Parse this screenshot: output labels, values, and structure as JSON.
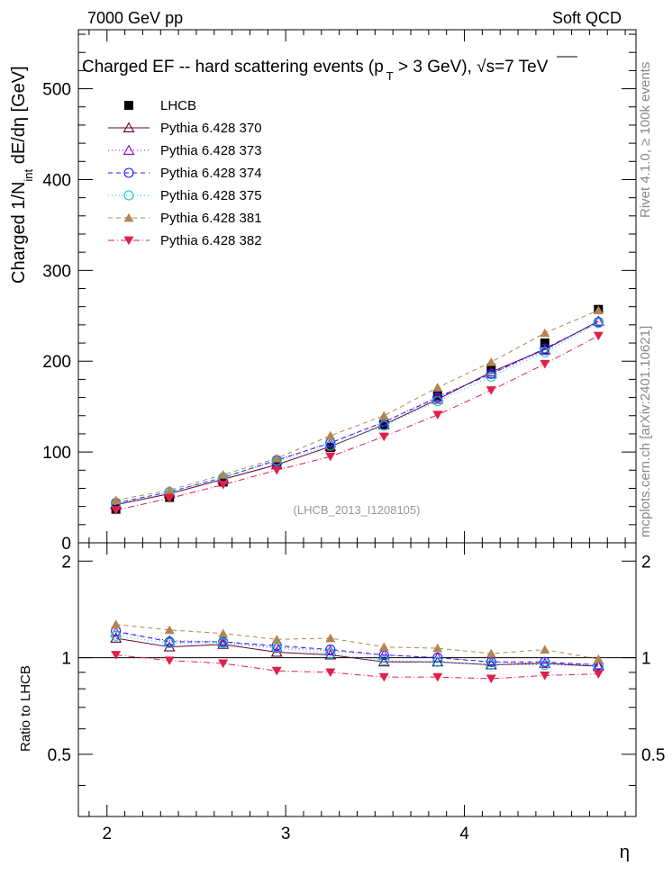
{
  "header": {
    "energy_label": "7000 GeV pp",
    "category": "Soft QCD"
  },
  "side_labels": {
    "rivet": "Rivet 4.1.0, ≥ 100k events",
    "mcplots": "mcplots.cern.ch [arXiv:2401.10621]"
  },
  "watermark": "(LHCB_2013_I1208105)",
  "chart_data": [
    {
      "type": "scatter",
      "panel": "main",
      "title": "Charged EF -- hard scattering events (p_T > 3 GeV),  √s=7 TeV",
      "title_part1": "Charged EF -- hard scattering events (p",
      "title_sub": "T",
      "title_part2": " > 3 GeV),  ",
      "title_sqrt": "√",
      "title_part3": "s=7 TeV",
      "xlabel": "η",
      "ylabel": "Charged 1/N_int dE/dη [GeV]",
      "ylabel_part1": "Charged 1/N",
      "ylabel_sub": "int",
      "ylabel_part2": "   dE/dη [GeV]",
      "xlim": [
        1.84,
        4.96
      ],
      "ylim": [
        0,
        565
      ],
      "yticks": [
        0,
        100,
        200,
        300,
        400,
        500
      ],
      "ytick_labels": [
        "0",
        "100",
        "200",
        "300",
        "400",
        "500"
      ],
      "x": [
        2.05,
        2.35,
        2.65,
        2.95,
        3.25,
        3.55,
        3.85,
        4.15,
        4.45,
        4.75
      ],
      "series": [
        {
          "name": "LHCB",
          "color": "#000000",
          "marker": "square",
          "line": "none",
          "values": [
            37,
            50,
            67,
            88,
            105,
            130,
            162,
            192,
            220,
            257
          ]
        },
        {
          "name": "Pythia 6.428 370",
          "color": "#660033",
          "marker": "triangle-open",
          "line": "solid",
          "values": [
            42,
            54,
            70,
            86,
            106,
            130,
            158,
            188,
            213,
            244
          ]
        },
        {
          "name": "Pythia 6.428 373",
          "color": "#9900cc",
          "marker": "triangle-open",
          "line": "dotted",
          "values": [
            43,
            56,
            72,
            91,
            110,
            133,
            161,
            186,
            212,
            244
          ]
        },
        {
          "name": "Pythia 6.428 374",
          "color": "#1a1aff",
          "marker": "circle-open",
          "line": "dashed",
          "values": [
            44,
            56,
            72,
            91,
            110,
            133,
            160,
            186,
            214,
            243
          ]
        },
        {
          "name": "Pythia 6.428 375",
          "color": "#00cccc",
          "marker": "circle-open",
          "line": "dotted",
          "values": [
            43,
            56,
            72,
            90,
            107,
            129,
            156,
            183,
            210,
            242
          ]
        },
        {
          "name": "Pythia 6.428 381",
          "color": "#b08650",
          "marker": "triangle-up",
          "line": "dashed",
          "values": [
            47,
            58,
            75,
            93,
            118,
            140,
            171,
            199,
            231,
            256
          ]
        },
        {
          "name": "Pythia 6.428 382",
          "color": "#e0204a",
          "marker": "triangle-down",
          "line": "dashdot",
          "values": [
            36,
            49,
            64,
            80,
            95,
            117,
            141,
            168,
            197,
            228
          ]
        }
      ]
    },
    {
      "type": "line",
      "panel": "ratio",
      "ylabel": "Ratio to LHCB",
      "xlabel": "η",
      "xlim": [
        1.84,
        4.96
      ],
      "ylim": [
        0.32,
        2.28
      ],
      "xticks": [
        2,
        3,
        4
      ],
      "xtick_labels": [
        "2",
        "3",
        "4"
      ],
      "yticks": [
        0.5,
        1,
        2
      ],
      "ytick_labels": [
        "0.5",
        "1",
        "2"
      ],
      "x": [
        2.05,
        2.35,
        2.65,
        2.95,
        3.25,
        3.55,
        3.85,
        4.15,
        4.45,
        4.75
      ],
      "series": [
        {
          "name": "Pythia 6.428 370",
          "values": [
            1.15,
            1.08,
            1.1,
            1.04,
            1.02,
            0.97,
            0.97,
            0.95,
            0.96,
            0.94
          ]
        },
        {
          "name": "Pythia 6.428 373",
          "values": [
            1.2,
            1.13,
            1.12,
            1.08,
            1.05,
            1.02,
            1.0,
            0.97,
            0.96,
            0.95
          ]
        },
        {
          "name": "Pythia 6.428 374",
          "values": [
            1.21,
            1.12,
            1.12,
            1.09,
            1.06,
            1.02,
            1.0,
            0.97,
            0.97,
            0.95
          ]
        },
        {
          "name": "Pythia 6.428 375",
          "values": [
            1.17,
            1.11,
            1.11,
            1.07,
            1.03,
            0.98,
            0.97,
            0.95,
            0.95,
            0.94
          ]
        },
        {
          "name": "Pythia 6.428 381",
          "values": [
            1.27,
            1.22,
            1.19,
            1.14,
            1.15,
            1.08,
            1.07,
            1.03,
            1.06,
            0.99
          ]
        },
        {
          "name": "Pythia 6.428 382",
          "values": [
            1.02,
            0.98,
            0.96,
            0.91,
            0.9,
            0.87,
            0.87,
            0.86,
            0.88,
            0.89
          ]
        }
      ]
    }
  ]
}
